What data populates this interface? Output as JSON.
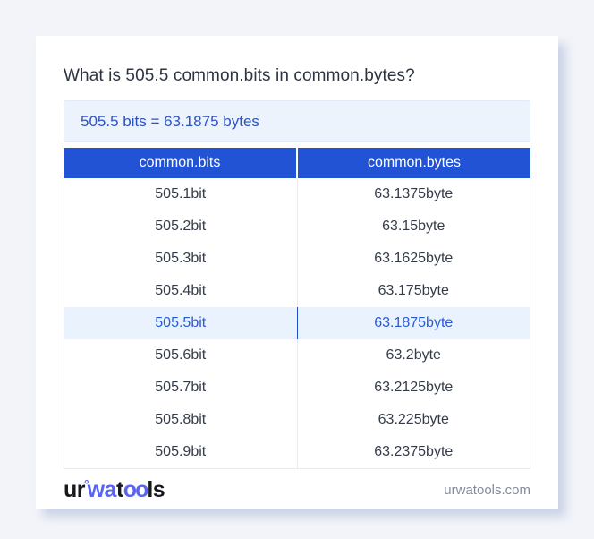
{
  "title": "What is 505.5 common.bits in common.bytes?",
  "result": "505.5 bits = 63.1875 bytes",
  "table": {
    "headers": [
      "common.bits",
      "common.bytes"
    ],
    "highlighted_row_index": 4,
    "rows": [
      [
        "505.1bit",
        "63.1375byte"
      ],
      [
        "505.2bit",
        "63.15byte"
      ],
      [
        "505.3bit",
        "63.1625byte"
      ],
      [
        "505.4bit",
        "63.175byte"
      ],
      [
        "505.5bit",
        "63.1875byte"
      ],
      [
        "505.6bit",
        "63.2byte"
      ],
      [
        "505.7bit",
        "63.2125byte"
      ],
      [
        "505.8bit",
        "63.225byte"
      ],
      [
        "505.9bit",
        "63.2375byte"
      ]
    ]
  },
  "footer": {
    "logo": {
      "seg1": "ur",
      "ring": "°",
      "seg2": "wa",
      "seg3": "t",
      "seg4": "oo",
      "seg5": "ls"
    },
    "site": "urwatools.com"
  },
  "colors": {
    "table_header_blue": "#2153d4",
    "result_box_bg": "#ecf3fc",
    "result_text_blue": "#2b53c1",
    "highlight_row_bg": "#eaf2fe",
    "highlight_text_blue": "#2a5bd7",
    "logo_blue": "#5b63f1",
    "page_bg": "#f2f4f9"
  }
}
